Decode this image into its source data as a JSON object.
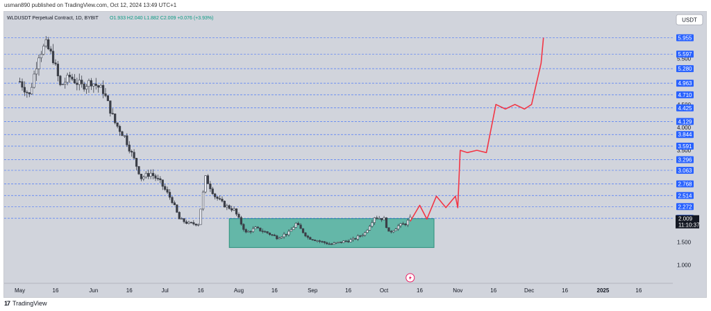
{
  "header": {
    "published": "usman890 published on TradingView.com, Oct 12, 2024 13:49 UTC+1"
  },
  "legend": {
    "symbol": "WLDUSDT Perpetual Contract, 1D, BYBIT",
    "ohlc": "O1.933 H2.040 L1.882 C2.009 +0.076 (+3.93%)"
  },
  "currency_button": "USDT",
  "footer": {
    "brand": "TradingView"
  },
  "colors": {
    "up": "#26a69a",
    "down": "#ef5350",
    "candle": "#3b3e47",
    "projection": "#f23645",
    "zone": "#3fae97",
    "level_line": "#2962ff",
    "tag": "#2962ff",
    "last_price_tag": "#131722"
  },
  "chart_data": {
    "type": "candlestick",
    "title": "WLDUSDT Perpetual Contract, 1D, BYBIT",
    "xlabel": "",
    "ylabel": "",
    "x_ticks": [
      "May",
      "16",
      "Jun",
      "16",
      "Jul",
      "16",
      "Aug",
      "16",
      "Sep",
      "16",
      "Oct",
      "16",
      "Nov",
      "16",
      "Dec",
      "16",
      "2025",
      "16"
    ],
    "y_ticks": [
      1.0,
      1.5,
      2.0,
      3.5,
      4.0,
      4.5,
      5.5
    ],
    "horizontal_levels": [
      5.955,
      5.597,
      5.28,
      4.963,
      4.71,
      4.425,
      4.129,
      3.844,
      3.591,
      3.296,
      3.063,
      2.768,
      2.514,
      2.272,
      2.018
    ],
    "last_price": 2.009,
    "countdown": "11:10:37",
    "ylim": [
      0.6,
      6.4
    ],
    "price_path": [
      [
        "2024-05-01",
        5.0
      ],
      [
        "2024-05-05",
        4.7
      ],
      [
        "2024-05-09",
        5.6
      ],
      [
        "2024-05-12",
        5.8
      ],
      [
        "2024-05-15",
        5.5
      ],
      [
        "2024-05-18",
        4.9
      ],
      [
        "2024-05-22",
        5.1
      ],
      [
        "2024-05-27",
        4.9
      ],
      [
        "2024-05-31",
        5.0
      ],
      [
        "2024-06-05",
        4.8
      ],
      [
        "2024-06-10",
        4.1
      ],
      [
        "2024-06-14",
        3.8
      ],
      [
        "2024-06-18",
        3.3
      ],
      [
        "2024-06-21",
        2.9
      ],
      [
        "2024-06-25",
        3.0
      ],
      [
        "2024-06-29",
        2.8
      ],
      [
        "2024-07-04",
        2.4
      ],
      [
        "2024-07-07",
        2.0
      ],
      [
        "2024-07-11",
        1.9
      ],
      [
        "2024-07-15",
        1.9
      ],
      [
        "2024-07-18",
        2.9
      ],
      [
        "2024-07-22",
        2.5
      ],
      [
        "2024-07-26",
        2.3
      ],
      [
        "2024-07-30",
        2.2
      ],
      [
        "2024-08-04",
        1.7
      ],
      [
        "2024-08-08",
        1.8
      ],
      [
        "2024-08-13",
        1.7
      ],
      [
        "2024-08-17",
        1.6
      ],
      [
        "2024-08-22",
        1.7
      ],
      [
        "2024-08-25",
        1.9
      ],
      [
        "2024-08-30",
        1.6
      ],
      [
        "2024-09-05",
        1.5
      ],
      [
        "2024-09-09",
        1.45
      ],
      [
        "2024-09-13",
        1.5
      ],
      [
        "2024-09-18",
        1.55
      ],
      [
        "2024-09-23",
        1.7
      ],
      [
        "2024-09-27",
        2.05
      ],
      [
        "2024-10-01",
        2.0
      ],
      [
        "2024-10-03",
        1.7
      ],
      [
        "2024-10-07",
        1.85
      ],
      [
        "2024-10-10",
        1.9
      ],
      [
        "2024-10-12",
        2.009
      ]
    ],
    "projection": [
      [
        "2024-10-12",
        1.95
      ],
      [
        "2024-10-16",
        2.3
      ],
      [
        "2024-10-19",
        2.0
      ],
      [
        "2024-10-23",
        2.5
      ],
      [
        "2024-10-27",
        2.25
      ],
      [
        "2024-10-31",
        2.5
      ],
      [
        "2024-11-01",
        2.25
      ],
      [
        "2024-11-02",
        3.5
      ],
      [
        "2024-11-05",
        3.45
      ],
      [
        "2024-11-09",
        3.5
      ],
      [
        "2024-11-13",
        3.45
      ],
      [
        "2024-11-17",
        4.5
      ],
      [
        "2024-11-21",
        4.4
      ],
      [
        "2024-11-25",
        4.5
      ],
      [
        "2024-11-29",
        4.4
      ],
      [
        "2024-12-02",
        4.5
      ],
      [
        "2024-12-06",
        5.4
      ],
      [
        "2024-12-07",
        5.955
      ]
    ],
    "zone": {
      "x_start": "2024-07-28",
      "x_end": "2024-10-22",
      "y_top": 2.01,
      "y_bottom": 1.38
    }
  }
}
